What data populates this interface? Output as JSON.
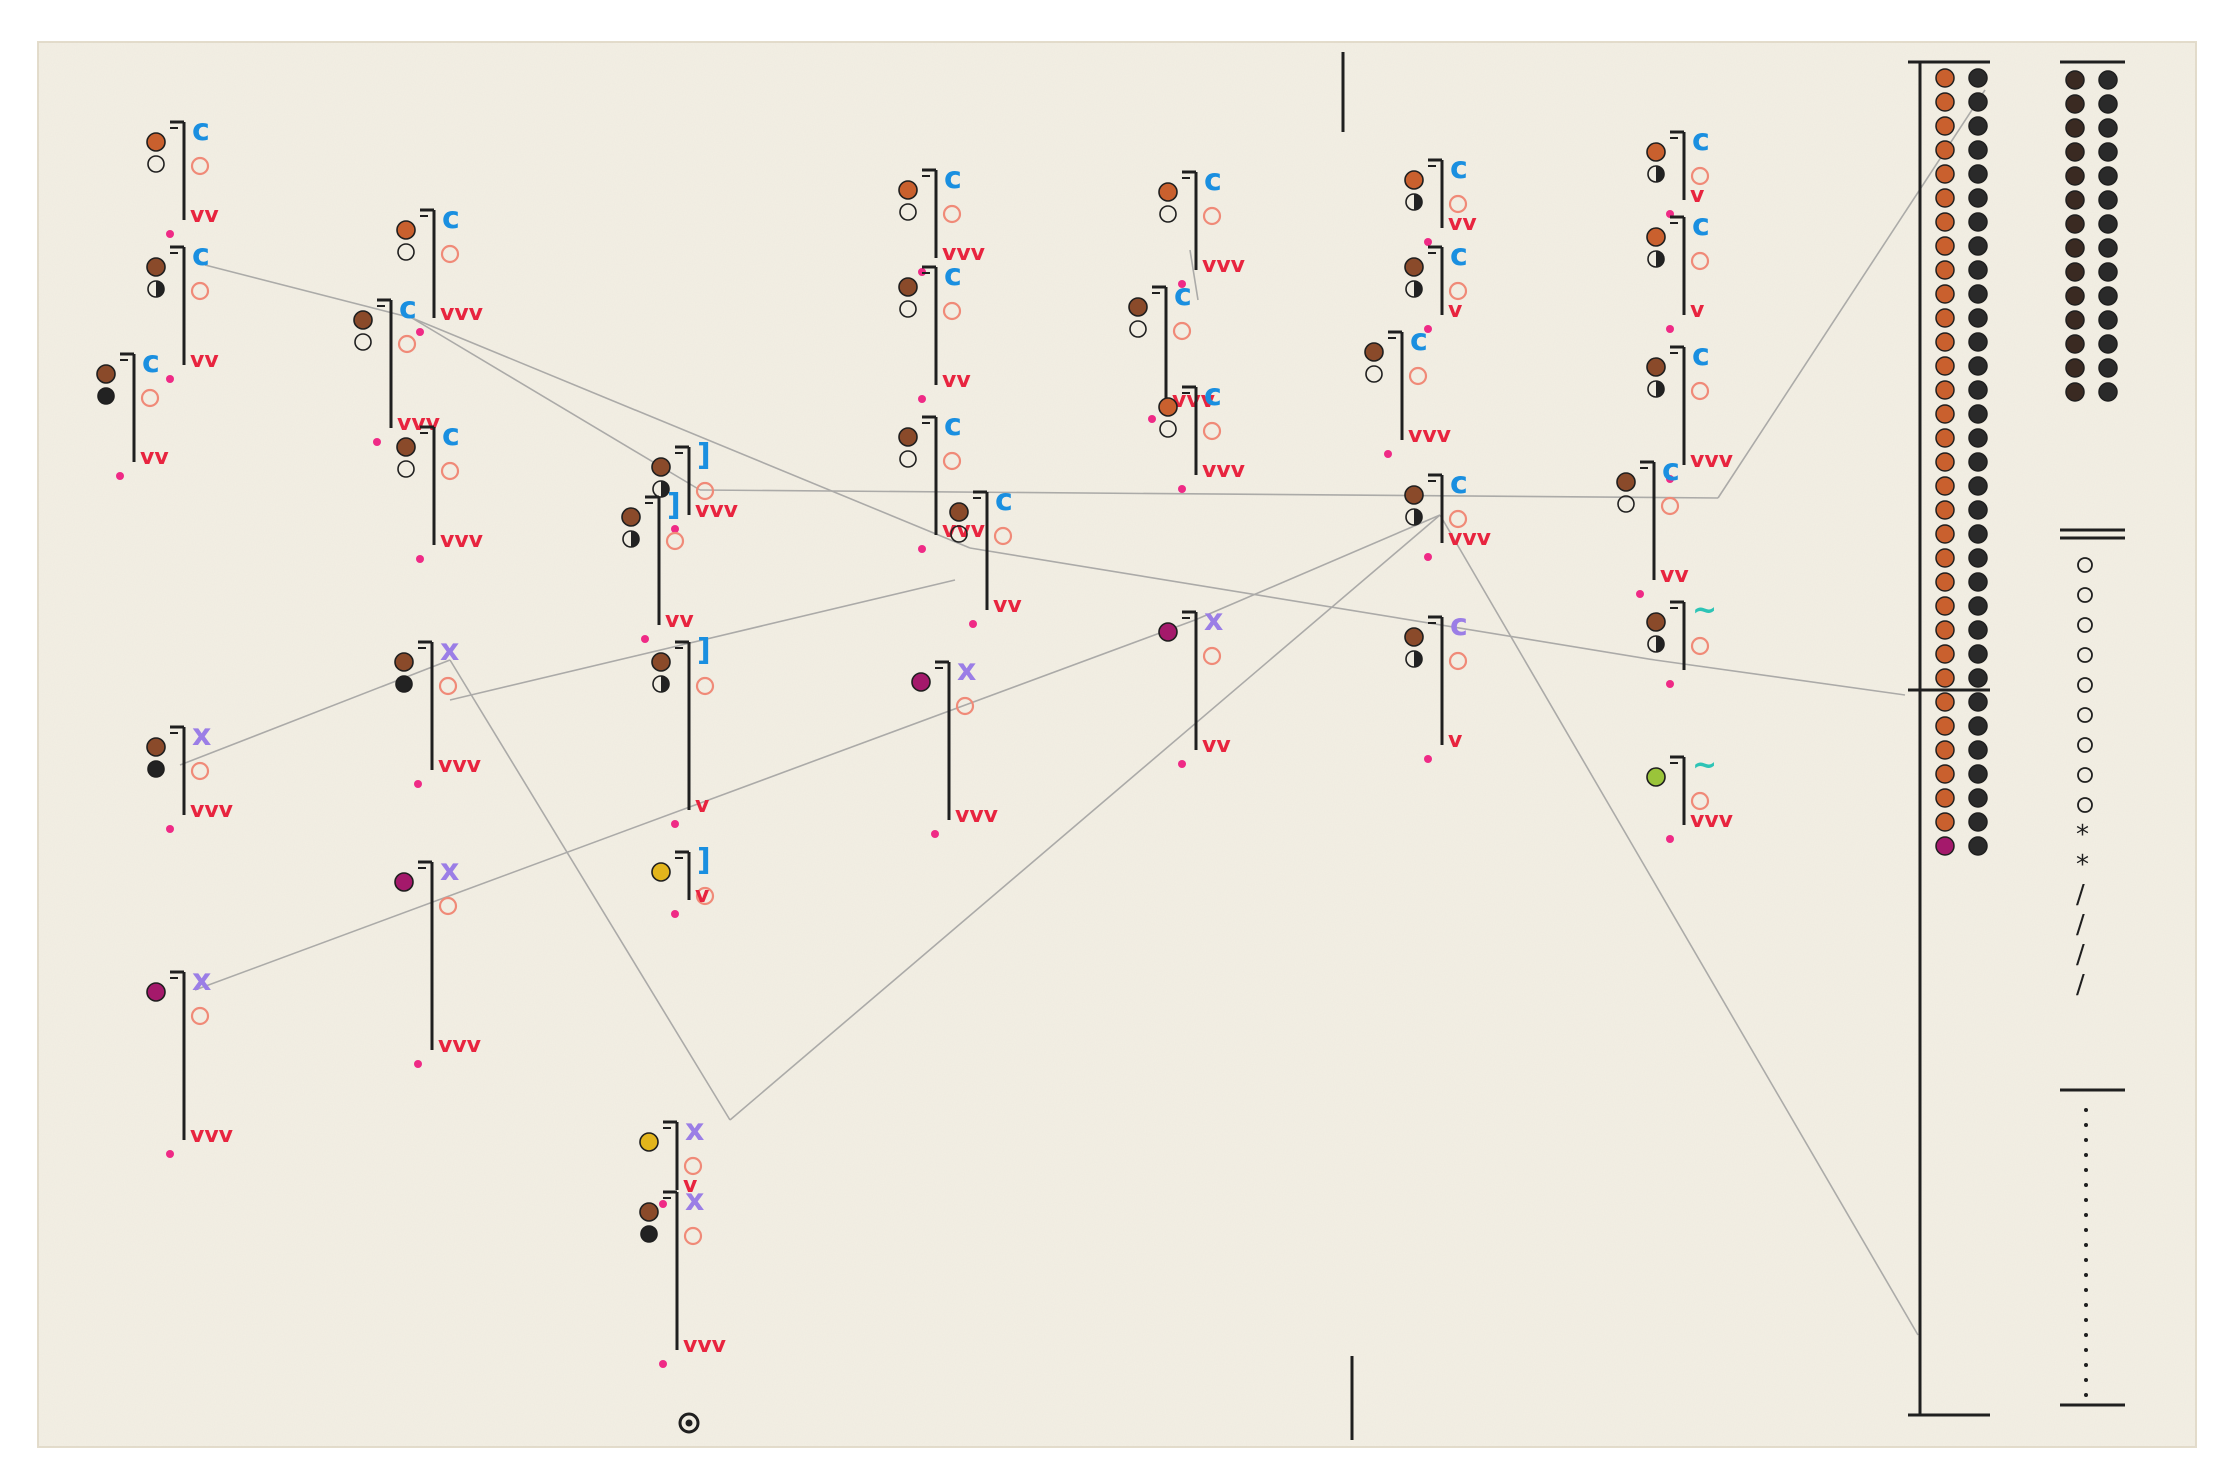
{
  "title": "",
  "colors": {
    "paper": "#f3efe4",
    "paper_edge": "#e7e2d4",
    "ink": "#1f1f1f",
    "pencil": "#9a9a9a",
    "blue": "#1a8fe0",
    "brown": "#8a4a2a",
    "orange": "#d0582a",
    "violet": "#9b7ee6",
    "red": "#e8243f",
    "pink": "#ef2a86",
    "salmon": "#f08a78",
    "teal": "#2ec4b6",
    "magenta": "#a4196b",
    "yellow": "#e3b51c",
    "lime": "#9ac43a"
  },
  "symbols": {
    "blue_mark": "c",
    "violet_mark": "x",
    "teal_mark": "~",
    "accent_mark": "vvv",
    "dot_mark": "•"
  },
  "groups": [
    {
      "id": "g1",
      "glyph": "c",
      "tone": "blue",
      "fill": "#c9602e",
      "lower": "open",
      "tail": 2
    },
    {
      "id": "g2",
      "glyph": "c",
      "tone": "blue",
      "fill": "#8a4a2a",
      "lower": "half",
      "tail": 2
    },
    {
      "id": "g3",
      "glyph": "c",
      "tone": "blue",
      "fill": "#8a4a2a",
      "lower": "dark",
      "tail": 2
    },
    {
      "id": "g4",
      "glyph": "c",
      "tone": "blue",
      "fill": "#c9602e",
      "lower": "open",
      "tail": 3
    },
    {
      "id": "g5",
      "glyph": "c",
      "tone": "blue",
      "fill": "#8a4a2a",
      "lower": "open",
      "tail": 3
    },
    {
      "id": "g6",
      "glyph": "c",
      "tone": "blue",
      "fill": "#8a4a2a",
      "lower": "open",
      "tail": 3
    },
    {
      "id": "g7",
      "glyph": "c",
      "tone": "blue",
      "fill": "#c9602e",
      "lower": "open",
      "tail": 3
    },
    {
      "id": "g8",
      "glyph": "c",
      "tone": "blue",
      "fill": "#8a4a2a",
      "lower": "open",
      "tail": 2
    },
    {
      "id": "g9",
      "glyph": "c",
      "tone": "blue",
      "fill": "#8a4a2a",
      "lower": "open",
      "tail": 3
    },
    {
      "id": "g10",
      "glyph": "c",
      "tone": "blue",
      "fill": "#8a4a2a",
      "lower": "open",
      "tail": 2
    },
    {
      "id": "g11",
      "glyph": "c",
      "tone": "blue",
      "fill": "#c9602e",
      "lower": "open",
      "tail": 3
    },
    {
      "id": "g12",
      "glyph": "c",
      "tone": "blue",
      "fill": "#8a4a2a",
      "lower": "open",
      "tail": 3
    },
    {
      "id": "g13",
      "glyph": "c",
      "tone": "blue",
      "fill": "#c9602e",
      "lower": "open",
      "tail": 3
    },
    {
      "id": "g14",
      "glyph": "c",
      "tone": "blue",
      "fill": "#c9602e",
      "lower": "half",
      "tail": 2
    },
    {
      "id": "g15",
      "glyph": "c",
      "tone": "blue",
      "fill": "#8a4a2a",
      "lower": "half",
      "tail": 1
    },
    {
      "id": "g16",
      "glyph": "c",
      "tone": "blue",
      "fill": "#8a4a2a",
      "lower": "open",
      "tail": 3
    },
    {
      "id": "g17",
      "glyph": "c",
      "tone": "blue",
      "fill": "#8a4a2a",
      "lower": "half",
      "tail": 3
    },
    {
      "id": "g18",
      "glyph": "c",
      "tone": "blue",
      "fill": "#c9602e",
      "lower": "half",
      "tail": 1
    },
    {
      "id": "g19",
      "glyph": "c",
      "tone": "blue",
      "fill": "#c9602e",
      "lower": "half",
      "tail": 1
    },
    {
      "id": "g20",
      "glyph": "c",
      "tone": "blue",
      "fill": "#8a4a2a",
      "lower": "half",
      "tail": 3
    },
    {
      "id": "g21",
      "glyph": "c",
      "tone": "blue",
      "fill": "#8a4a2a",
      "lower": "open",
      "tail": 2
    },
    {
      "id": "g22",
      "glyph": "~",
      "tone": "teal",
      "fill": "#8a4a2a",
      "lower": "half",
      "tail": 0
    },
    {
      "id": "g23",
      "glyph": "x",
      "tone": "violet",
      "fill": "#8a4a2a",
      "lower": "dark",
      "tail": 3
    },
    {
      "id": "g24",
      "glyph": "x",
      "tone": "violet",
      "fill": "#8a4a2a",
      "lower": "dark",
      "tail": 3
    },
    {
      "id": "g25",
      "glyph": "x",
      "tone": "violet",
      "fill": "#a4196b",
      "lower": "none",
      "tail": 3
    },
    {
      "id": "g26",
      "glyph": "x",
      "tone": "violet",
      "fill": "#a4196b",
      "lower": "none",
      "tail": 3
    },
    {
      "id": "g27",
      "glyph": "x",
      "tone": "violet",
      "fill": "#a4196b",
      "lower": "none",
      "tail": 3
    },
    {
      "id": "g28",
      "glyph": "x",
      "tone": "violet",
      "fill": "#a4196b",
      "lower": "none",
      "tail": 2
    },
    {
      "id": "g29",
      "glyph": "x",
      "tone": "violet",
      "fill": "#e3b51c",
      "lower": "none",
      "tail": 1
    },
    {
      "id": "g30",
      "glyph": "x",
      "tone": "violet",
      "fill": "#8a4a2a",
      "lower": "dark",
      "tail": 3
    },
    {
      "id": "g31",
      "glyph": "c",
      "tone": "violet",
      "fill": "#8a4a2a",
      "lower": "half",
      "tail": 1
    },
    {
      "id": "g32",
      "glyph": "~",
      "tone": "teal",
      "fill": "#9ac43a",
      "lower": "none",
      "tail": 3
    },
    {
      "id": "g33",
      "glyph": "]",
      "tone": "blue",
      "fill": "#8a4a2a",
      "lower": "half",
      "tail": 3
    },
    {
      "id": "g34",
      "glyph": "]",
      "tone": "blue",
      "fill": "#8a4a2a",
      "lower": "half",
      "tail": 2
    },
    {
      "id": "g35",
      "glyph": "]",
      "tone": "blue",
      "fill": "#8a4a2a",
      "lower": "half",
      "tail": 1
    },
    {
      "id": "g36",
      "glyph": "]",
      "tone": "blue",
      "fill": "#e3b51c",
      "lower": "none",
      "tail": 1
    }
  ],
  "sequences": {
    "strip_a": [
      "#c9602e",
      "#8a4a2a",
      "#c9602e",
      "#8a4a2a",
      "#c9602e",
      "#8a4a2a",
      "#c9602e",
      "#8a4a2a",
      "#c9602e",
      "#8a4a2a",
      "#c9602e",
      "#8a4a2a",
      "#c9602e",
      "#8a4a2a",
      "#c9602e",
      "#8a4a2a",
      "#c9602e",
      "#8a4a2a",
      "#c9602e",
      "#8a4a2a",
      "#c9602e",
      "#8a4a2a",
      "#c9602e",
      "#8a4a2a",
      "#c9602e",
      "#8a4a2a",
      "#c9602e",
      "#8a4a2a",
      "#c9602e",
      "#8a4a2a",
      "#c9602e",
      "#8a4a2a",
      "#c9602e",
      "#8a4a2a",
      "#c9602e",
      "#8a4a2a",
      "#c9602e",
      "#8a4a2a",
      "#c9602e",
      "#8a4a2a",
      "#c9602e",
      "#8a4a2a",
      "#c9602e",
      "#8a4a2a",
      "#c9602e",
      "#8a4a2a",
      "#c9602e",
      "#8a4a2a",
      "#c9602e",
      "#8a4a2a",
      "#c9602e",
      "#8a4a2a",
      "#c9602e",
      "#8a4a2a",
      "#c9602e",
      "#8a4a2a",
      "#c9602e",
      "#8a4a2a",
      "#c9602e",
      "#8a4a2a",
      "#c9602e",
      "#8a4a2a",
      "#c9602e",
      "#8a4a2a",
      "#a4196b",
      "#e88a7a"
    ],
    "strip_b_rows": 14,
    "strip_b_lower_marks": [
      "o",
      "o",
      "o",
      "o",
      "o",
      "o",
      "o",
      "o",
      "o",
      "*",
      "*",
      "/",
      "/",
      "/",
      "/"
    ],
    "strip_b_dots": 20
  }
}
